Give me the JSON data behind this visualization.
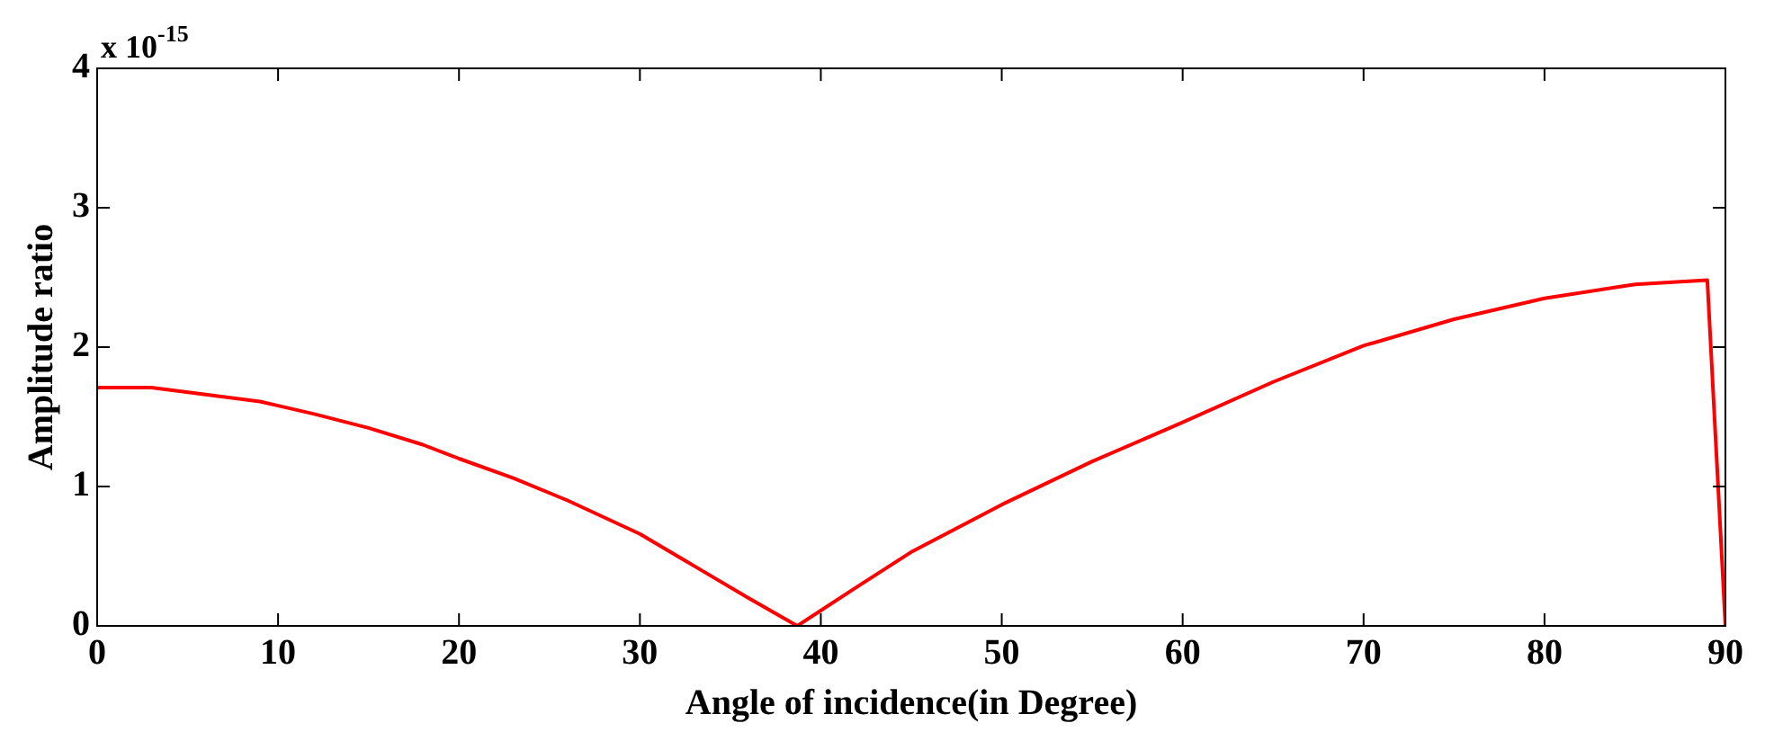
{
  "chart_data": {
    "type": "line",
    "xlabel": "Angle of incidence(in Degree)",
    "ylabel": "Amplitude ratio",
    "annotations": [
      "x 10$^{-15}$"
    ],
    "x": [
      0,
      3,
      6,
      9,
      10,
      12,
      15,
      18,
      20,
      23,
      26,
      30,
      33,
      36,
      38.7,
      42,
      45,
      50,
      55,
      60,
      65,
      70,
      75,
      80,
      85,
      89,
      90
    ],
    "series": [
      {
        "color": "#ff0000",
        "values": [
          1.71,
          1.71,
          1.66,
          1.61,
          1.58,
          1.52,
          1.42,
          1.3,
          1.2,
          1.06,
          0.9,
          0.66,
          0.43,
          0.2,
          0,
          0.28,
          0.53,
          0.87,
          1.18,
          1.46,
          1.75,
          2.01,
          2.2,
          2.35,
          2.45,
          2.48,
          0
        ]
      }
    ],
    "xlim": [
      0,
      90
    ],
    "xticks": [
      0,
      10,
      20,
      30,
      40,
      50,
      60,
      70,
      80,
      90
    ],
    "ylim": [
      0,
      4
    ],
    "yticks": [
      0,
      1,
      2,
      3,
      4
    ],
    "grid": false,
    "legend": false,
    "marker": "none",
    "line_style": "solid"
  }
}
